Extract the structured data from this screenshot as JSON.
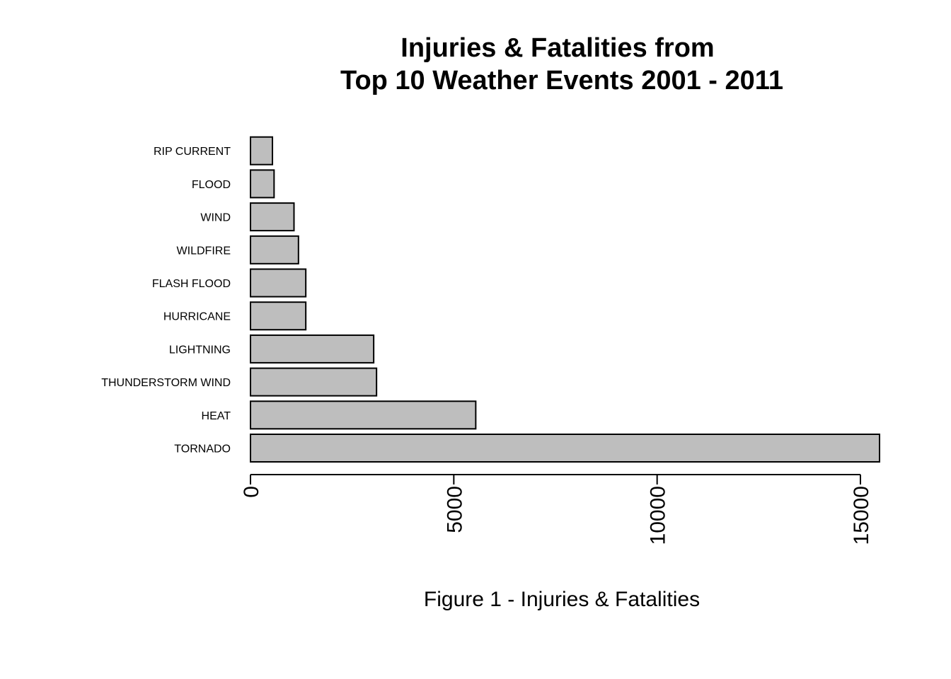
{
  "chart_data": {
    "type": "bar",
    "orientation": "horizontal",
    "title_lines": [
      "Injuries & Fatalities from",
      "Top 10 Weather Events 2001 - 2011"
    ],
    "xlabel": "Figure 1 - Injuries & Fatalities",
    "ylabel": "",
    "categories": [
      "TORNADO",
      "HEAT",
      "THUNDERSTORM WIND",
      "LIGHTNING",
      "HURRICANE",
      "FLASH FLOOD",
      "WILDFIRE",
      "WIND",
      "FLOOD",
      "RIP CURRENT"
    ],
    "values": [
      15470,
      5540,
      3100,
      3030,
      1360,
      1360,
      1180,
      1070,
      580,
      540
    ],
    "xticks": [
      0,
      5000,
      10000,
      15000
    ],
    "xtick_labels": [
      "0",
      "5000",
      "10000",
      "15000"
    ],
    "xlim": [
      0,
      15500
    ],
    "bar_color": "#bebebe",
    "bar_edge_color": "#000000",
    "grid": false,
    "legend": "none"
  }
}
